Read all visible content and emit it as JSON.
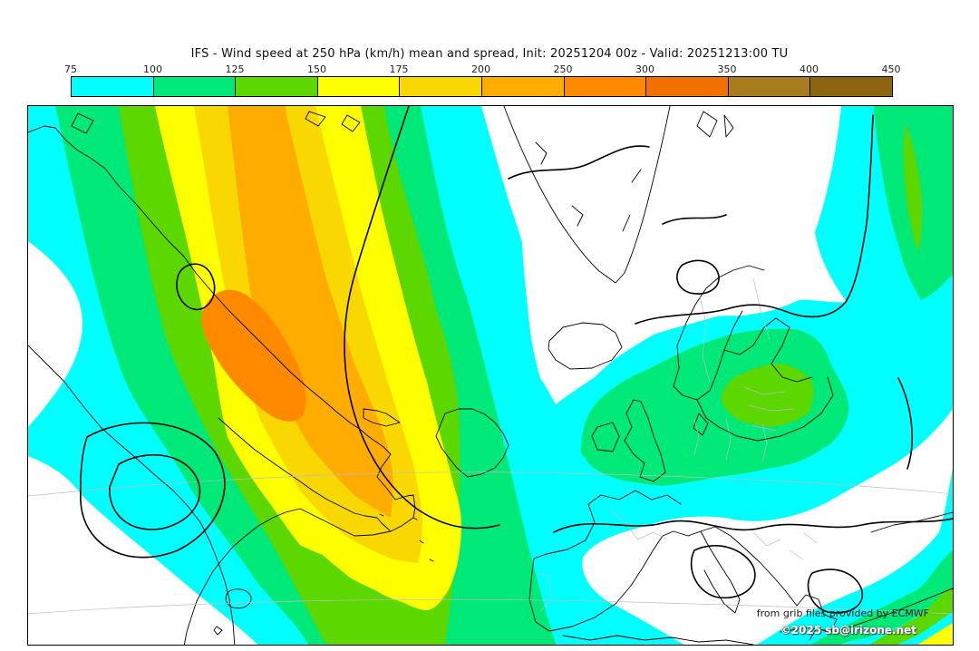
{
  "title": "IFS - Wind speed at 250 hPa (km/h) mean and spread, Init: 20251204 00z - Valid: 20251213:00 TU",
  "colorbar": {
    "ticks": [
      "75",
      "100",
      "125",
      "150",
      "175",
      "200",
      "250",
      "300",
      "350",
      "400",
      "450"
    ],
    "segments": [
      {
        "range": "75-100",
        "color": "#00FFFF"
      },
      {
        "range": "100-125",
        "color": "#00E878"
      },
      {
        "range": "125-150",
        "color": "#5CD800"
      },
      {
        "range": "150-175",
        "color": "#FFFF00"
      },
      {
        "range": "175-200",
        "color": "#F8D800"
      },
      {
        "range": "200-250",
        "color": "#FFAC00"
      },
      {
        "range": "250-300",
        "color": "#FF8A00"
      },
      {
        "range": "300-350",
        "color": "#F07000"
      },
      {
        "range": "350-400",
        "color": "#A87B1C"
      },
      {
        "range": "400-450",
        "color": "#8C650E"
      }
    ]
  },
  "palette": {
    "lt75": "#FFFFFF",
    "v75": "#00FFFF",
    "v100": "#00E878",
    "v125": "#5CD800",
    "v150": "#FFFF00",
    "v175": "#F8D800",
    "v200": "#FFAC00",
    "v250": "#FF8A00"
  },
  "map": {
    "attribution_line1": "from grib files provided by ECMWF",
    "attribution_line2": "©2025 sb@irizone.net"
  }
}
